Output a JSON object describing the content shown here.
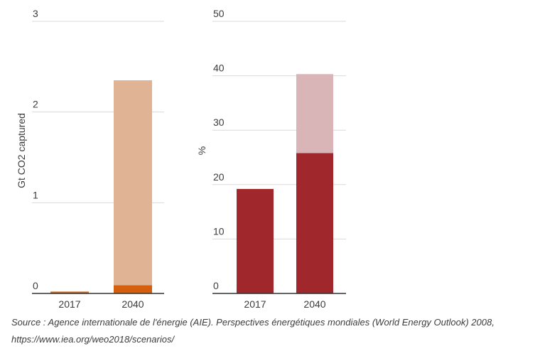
{
  "chart_data": [
    {
      "type": "bar",
      "stacked": true,
      "title": "",
      "xlabel": "",
      "ylabel": "Gt CO2 captured",
      "ylim": [
        0,
        3
      ],
      "yticks": [
        "0",
        "1",
        "2",
        "3"
      ],
      "categories": [
        "2017",
        "2040"
      ],
      "series": [
        {
          "values": [
            0.02,
            0.09
          ],
          "color": "#d65f0e"
        },
        {
          "values": [
            0.0,
            2.26
          ],
          "color": "#e0b394"
        }
      ],
      "grid": true
    },
    {
      "type": "bar",
      "stacked": true,
      "title": "",
      "xlabel": "",
      "ylabel": "%",
      "ylim": [
        0,
        50
      ],
      "yticks": [
        "0",
        "10",
        "20",
        "30",
        "40",
        "50"
      ],
      "categories": [
        "2017",
        "2040"
      ],
      "series": [
        {
          "values": [
            19.2,
            25.8
          ],
          "color": "#a0282d"
        },
        {
          "values": [
            0.0,
            14.5
          ],
          "color": "#d9b5b7"
        }
      ],
      "grid": true
    }
  ],
  "source": {
    "line1": "Source : Agence internationale de l'énergie (AIE). Perspectives énergétiques mondiales (World Energy Outlook) 2008,",
    "line2": "https://www.iea.org/weo2018/scenarios/"
  }
}
